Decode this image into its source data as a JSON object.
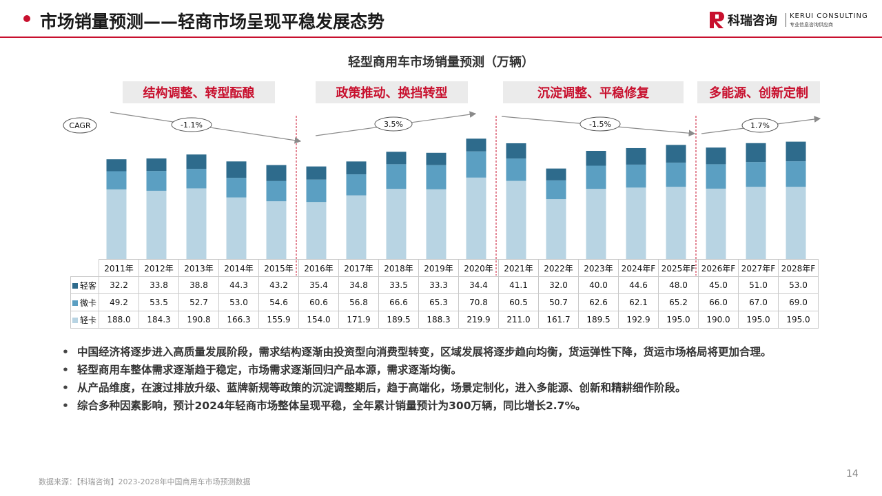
{
  "header": {
    "title": "市场销量预测——轻商市场呈现平稳发展态势",
    "logo_cn": "科瑞咨询",
    "logo_en": "KERUI CONSULTING",
    "logo_sub": "专业信息咨询供应商",
    "accent_color": "#c8102e"
  },
  "phases": [
    {
      "label": "结构调整、转型酝酿",
      "cagr": "-1.1%"
    },
    {
      "label": "政策推动、换挡转型",
      "cagr": "3.5%"
    },
    {
      "label": "沉淀调整、平稳修复",
      "cagr": "-1.5%"
    },
    {
      "label": "多能源、创新定制",
      "cagr": "1.7%"
    }
  ],
  "cagr_label": "CAGR",
  "chart_data": {
    "type": "bar",
    "stacked": true,
    "title": "轻型商用车市场销量预测（万辆）",
    "categories": [
      "2011年",
      "2012年",
      "2013年",
      "2014年",
      "2015年",
      "2016年",
      "2017年",
      "2018年",
      "2019年",
      "2020年",
      "2021年",
      "2022年",
      "2023年",
      "2024年F",
      "2025年F",
      "2026年F",
      "2027年F",
      "2028年F"
    ],
    "series": [
      {
        "name": "轻卡",
        "color": "#b8d4e3",
        "values": [
          188.0,
          184.3,
          190.8,
          166.3,
          155.9,
          154.0,
          171.9,
          189.5,
          188.3,
          219.9,
          211.0,
          161.7,
          189.5,
          192.9,
          195.0,
          190.0,
          195.0,
          195.0
        ]
      },
      {
        "name": "微卡",
        "color": "#5b9fc2",
        "values": [
          49.2,
          53.5,
          52.7,
          53.0,
          54.6,
          60.6,
          56.8,
          66.6,
          65.3,
          70.8,
          60.5,
          50.7,
          62.6,
          62.1,
          65.2,
          66.0,
          67.0,
          69.0
        ]
      },
      {
        "name": "轻客",
        "color": "#2e6b8c",
        "values": [
          32.2,
          33.8,
          38.8,
          44.3,
          43.2,
          35.4,
          34.8,
          33.5,
          33.3,
          34.4,
          41.1,
          32.0,
          40.0,
          44.6,
          48.0,
          45.0,
          51.0,
          53.0
        ]
      }
    ],
    "table_rows": [
      {
        "name": "轻客",
        "color": "#2e6b8c",
        "values": [
          "32.2",
          "33.8",
          "38.8",
          "44.3",
          "43.2",
          "35.4",
          "34.8",
          "33.5",
          "33.3",
          "34.4",
          "41.1",
          "32.0",
          "40.0",
          "44.6",
          "48.0",
          "45.0",
          "51.0",
          "53.0"
        ]
      },
      {
        "name": "微卡",
        "color": "#5b9fc2",
        "values": [
          "49.2",
          "53.5",
          "52.7",
          "53.0",
          "54.6",
          "60.6",
          "56.8",
          "66.6",
          "65.3",
          "70.8",
          "60.5",
          "50.7",
          "62.6",
          "62.1",
          "65.2",
          "66.0",
          "67.0",
          "69.0"
        ]
      },
      {
        "name": "轻卡",
        "color": "#b8d4e3",
        "values": [
          "188.0",
          "184.3",
          "190.8",
          "166.3",
          "155.9",
          "154.0",
          "171.9",
          "189.5",
          "188.3",
          "219.9",
          "211.0",
          "161.7",
          "189.5",
          "192.9",
          "195.0",
          "190.0",
          "195.0",
          "195.0"
        ]
      }
    ],
    "ylim": [
      0,
      320
    ],
    "phase_boundaries_after": [
      "2015年",
      "2020年",
      "2025年F"
    ]
  },
  "bullets": [
    "中国经济将逐步进入高质量发展阶段，需求结构逐渐由投资型向消费型转变，区域发展将逐步趋向均衡，货运弹性下降，货运市场格局将更加合理。",
    "轻型商用车整体需求逐渐趋于稳定，市场需求逐渐回归产品本源，需求逐渐均衡。",
    "从产品维度，在渡过排放升级、蓝牌新规等政策的沉淀调整期后，趋于高端化，场景定制化，进入多能源、创新和精耕细作阶段。",
    "综合多种因素影响，预计2024年轻商市场整体呈现平稳，全年累计销量预计为300万辆，同比增长2.7%。"
  ],
  "source": "数据来源：【科瑞咨询】2023-2028年中国商用车市场预测数据",
  "page_number": "14"
}
